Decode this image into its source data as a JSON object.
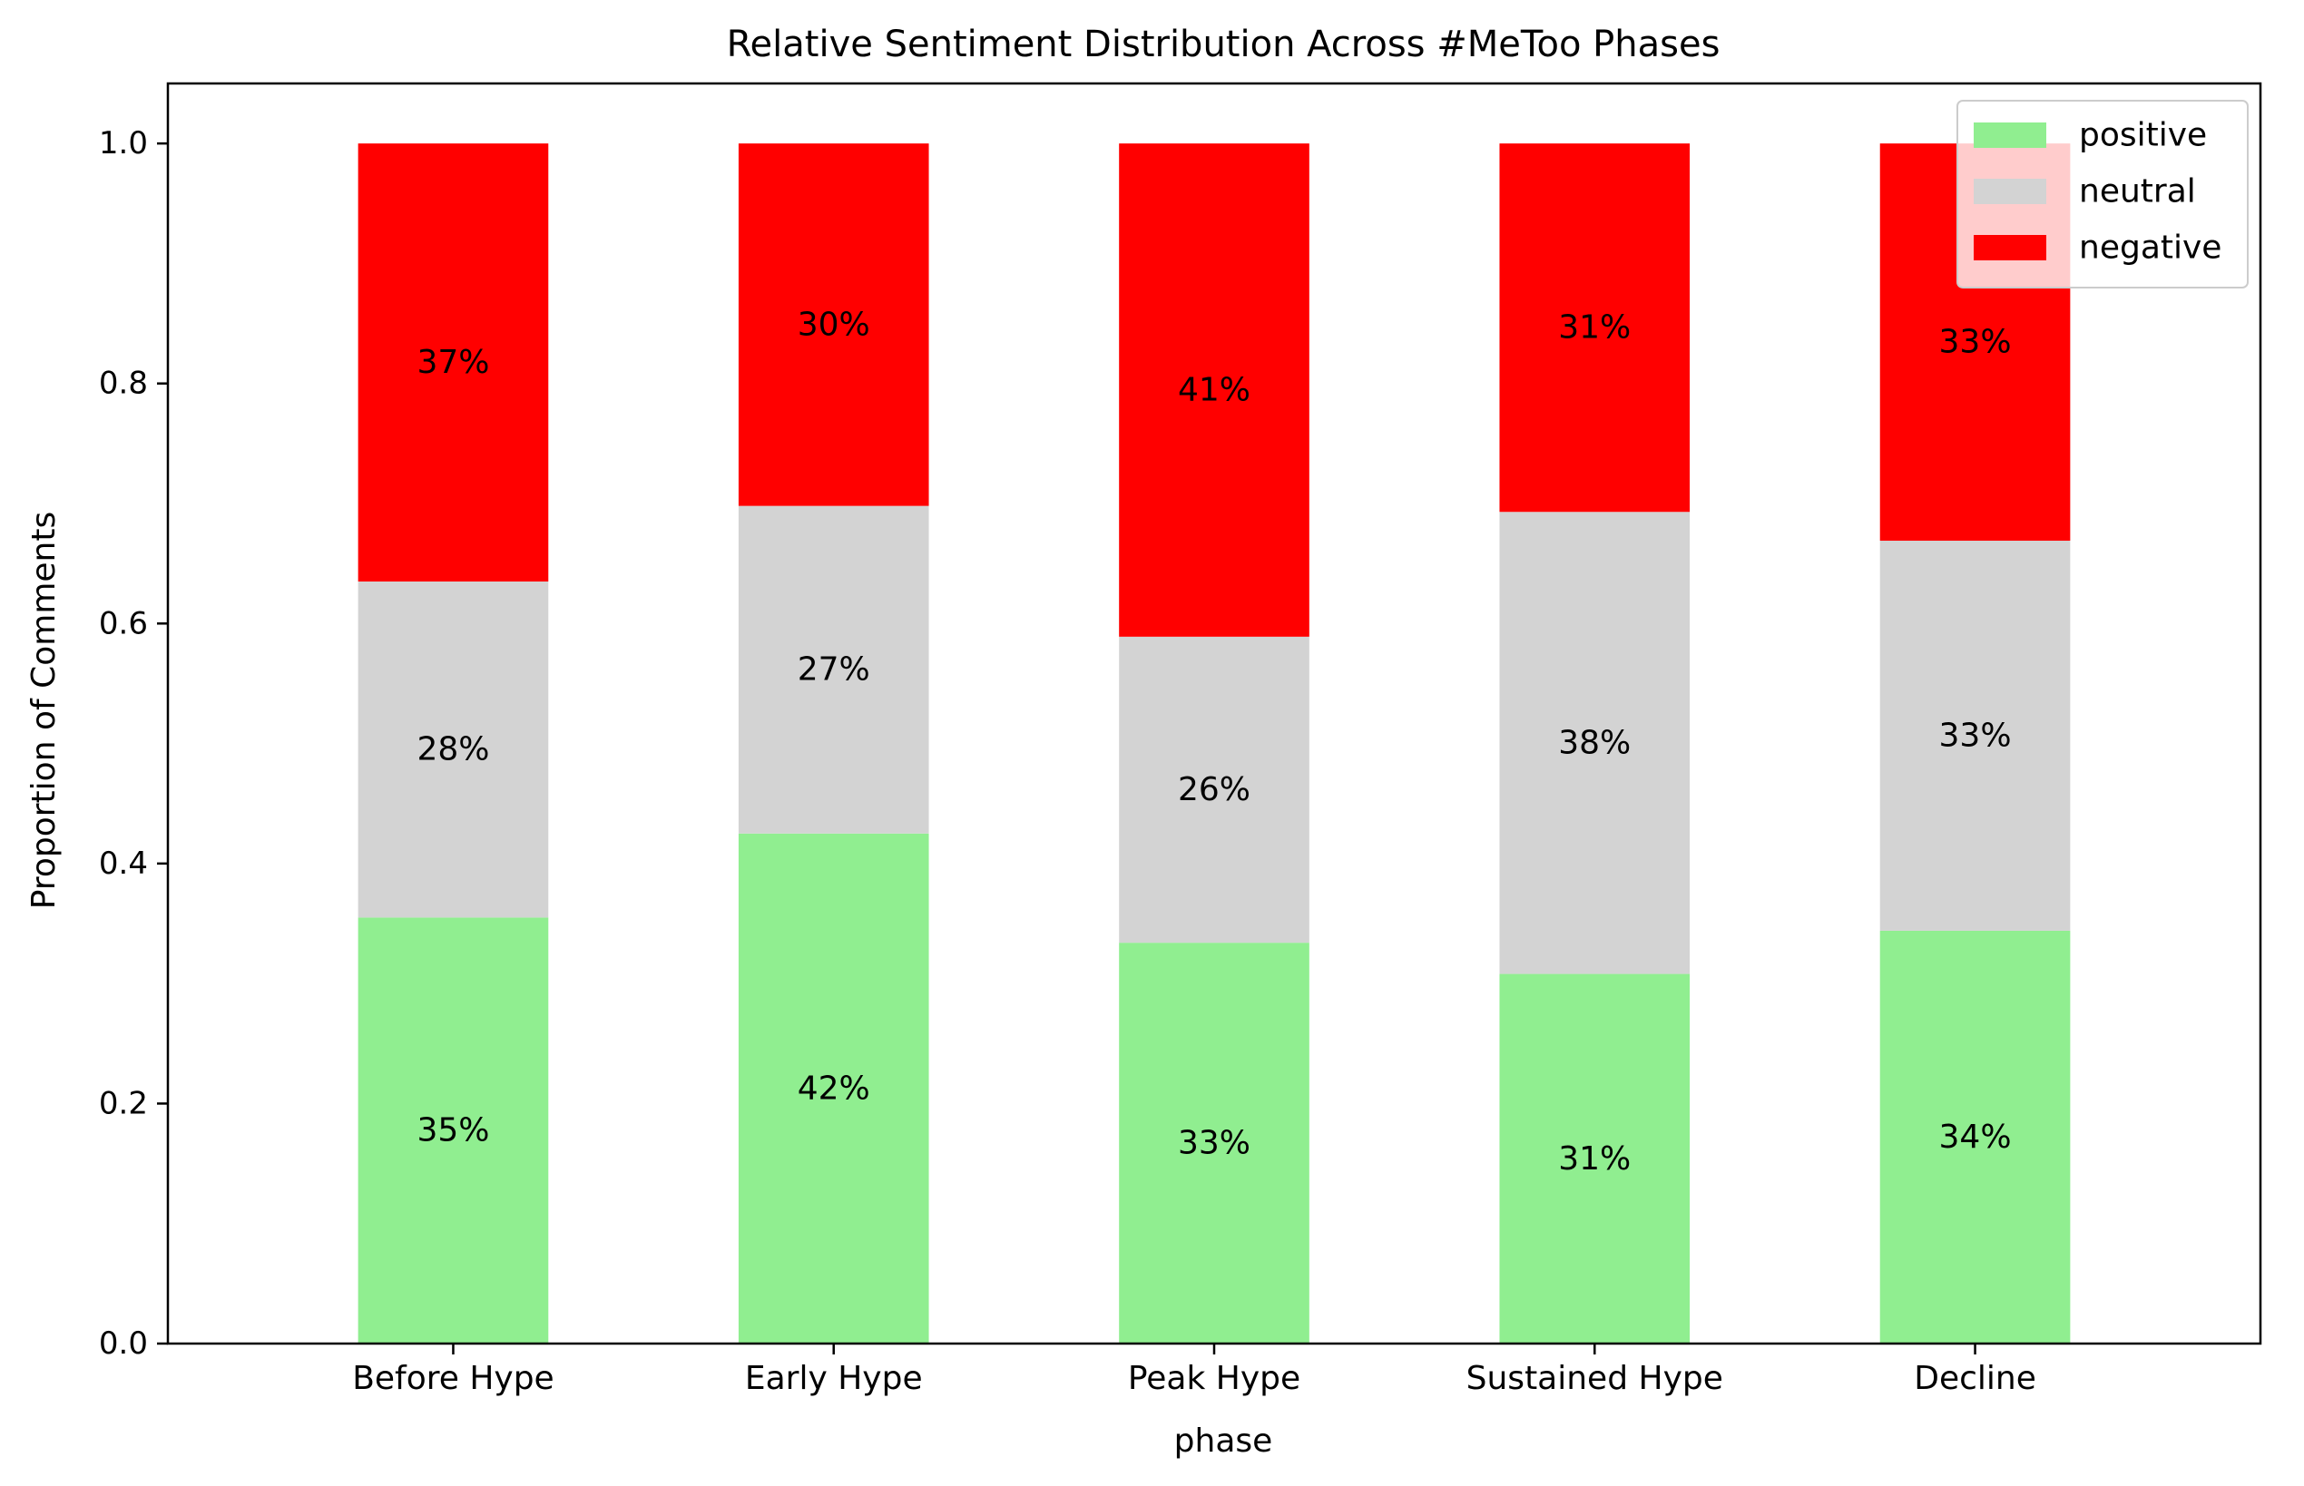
{
  "chart_data": {
    "type": "bar",
    "stacked": true,
    "title": "Relative Sentiment Distribution Across #MeToo Phases",
    "xlabel": "phase",
    "ylabel": "Proportion of Comments",
    "categories": [
      "Before Hype",
      "Early Hype",
      "Peak Hype",
      "Sustained Hype",
      "Decline"
    ],
    "ylim": [
      0,
      1.05
    ],
    "yticks": [
      0.0,
      0.2,
      0.4,
      0.6,
      0.8,
      1.0
    ],
    "ytick_labels": [
      "0.0",
      "0.2",
      "0.4",
      "0.6",
      "0.8",
      "1.0"
    ],
    "grid": false,
    "legend_position": "top-right",
    "series": [
      {
        "name": "positive",
        "color": "#90ee90",
        "values": [
          0.355,
          0.425,
          0.334,
          0.308,
          0.344
        ],
        "labels": [
          "35%",
          "42%",
          "33%",
          "31%",
          "34%"
        ]
      },
      {
        "name": "neutral",
        "color": "#d3d3d3",
        "values": [
          0.28,
          0.273,
          0.255,
          0.385,
          0.325
        ],
        "labels": [
          "28%",
          "27%",
          "26%",
          "38%",
          "33%"
        ]
      },
      {
        "name": "negative",
        "color": "#ff0000",
        "values": [
          0.365,
          0.302,
          0.411,
          0.307,
          0.331
        ],
        "labels": [
          "37%",
          "30%",
          "41%",
          "31%",
          "33%"
        ]
      }
    ]
  }
}
